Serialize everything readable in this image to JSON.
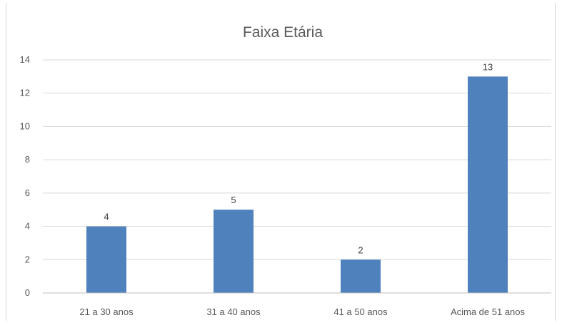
{
  "chart_data": {
    "type": "bar",
    "title": "Faixa Etária",
    "categories": [
      "21 a 30 anos",
      "31 a 40 anos",
      "41 a 50 anos",
      "Acima de 51 anos"
    ],
    "values": [
      4,
      5,
      2,
      13
    ],
    "data_labels": [
      "4",
      "5",
      "2",
      "13"
    ],
    "ylim": [
      0,
      14
    ],
    "yticks": [
      "0",
      "2",
      "4",
      "6",
      "8",
      "10",
      "12",
      "14"
    ],
    "grid": true,
    "legend": "none",
    "bar_color": "#4f81bd"
  }
}
